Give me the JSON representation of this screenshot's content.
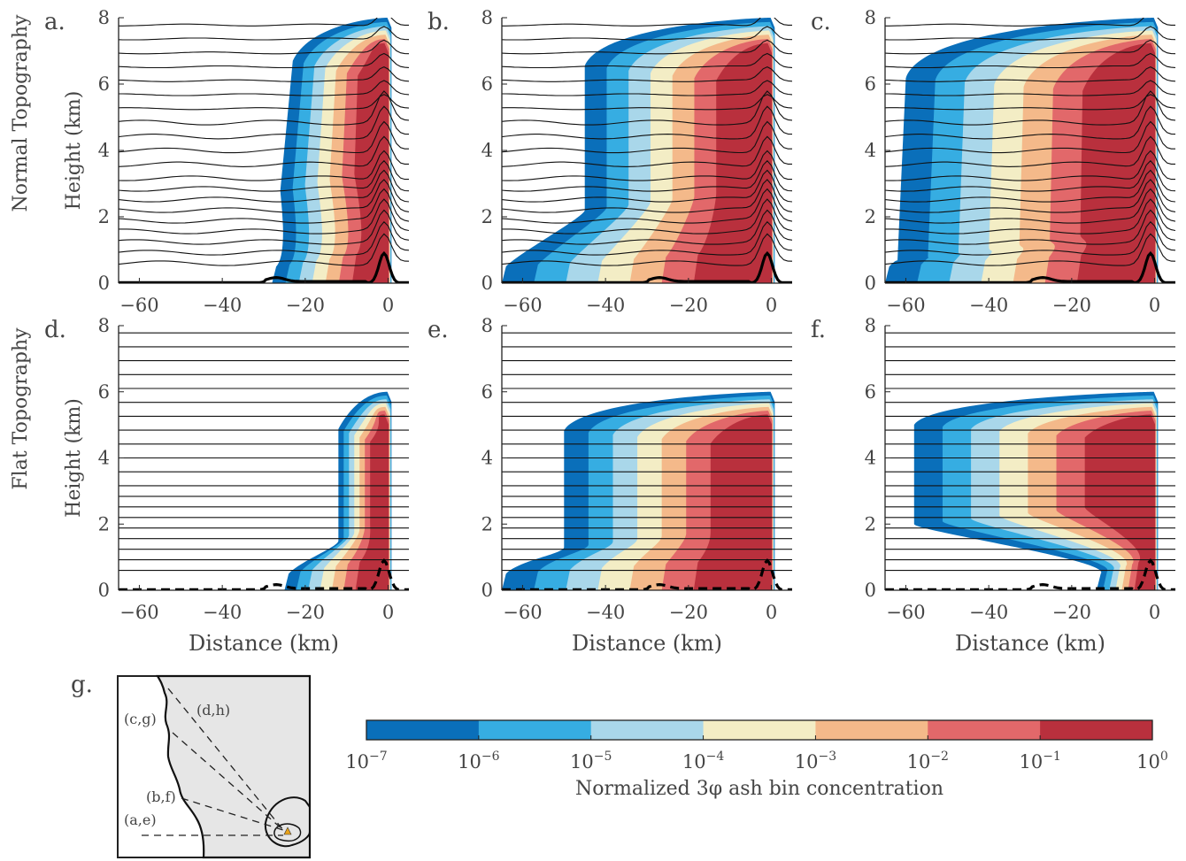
{
  "row_labels": [
    "Normal Topography",
    "Flat Topography"
  ],
  "colorbar": {
    "label": "Normalized 3φ ash bin concentration",
    "tick_labels": [
      {
        "base": "10",
        "exp": "−7"
      },
      {
        "base": "10",
        "exp": "−6"
      },
      {
        "base": "10",
        "exp": "−5"
      },
      {
        "base": "10",
        "exp": "−4"
      },
      {
        "base": "10",
        "exp": "−3"
      },
      {
        "base": "10",
        "exp": "−2"
      },
      {
        "base": "10",
        "exp": "−1"
      },
      {
        "base": "10",
        "exp": "0"
      }
    ],
    "colors": [
      "#0a6fba",
      "#36ade2",
      "#a9d7ea",
      "#f3edc5",
      "#f4b98a",
      "#e2686a",
      "#b9303d"
    ]
  },
  "chart_data": [
    {
      "type": "heatmap",
      "panel": "a.",
      "xlabel": "",
      "ylabel": "Height (km)",
      "xlim": [
        -65,
        5
      ],
      "ylim": [
        0,
        8
      ],
      "x_ticks": [
        "-60",
        "-40",
        "-20",
        "0"
      ],
      "y_ticks": [
        "0",
        "2",
        "4",
        "6",
        "8"
      ],
      "terrain": "solid",
      "plume": {
        "base_x": -28,
        "top_x": -23,
        "upper_x": -26,
        "upper_y0": 2.8,
        "max_top": 8
      }
    },
    {
      "type": "heatmap",
      "panel": "b.",
      "xlabel": "",
      "ylabel": "",
      "xlim": [
        -65,
        5
      ],
      "ylim": [
        0,
        8
      ],
      "x_ticks": [
        "-60",
        "-40",
        "-20",
        "0"
      ],
      "y_ticks": [
        "0",
        "2",
        "4",
        "6",
        "8"
      ],
      "terrain": "solid",
      "plume": {
        "base_x": -65,
        "top_x": -45,
        "upper_x": -45,
        "upper_y0": 2.2,
        "max_top": 8
      }
    },
    {
      "type": "heatmap",
      "panel": "c.",
      "xlabel": "",
      "ylabel": "",
      "xlim": [
        -65,
        5
      ],
      "ylim": [
        0,
        8
      ],
      "x_ticks": [
        "-60",
        "-40",
        "-20",
        "0"
      ],
      "y_ticks": [
        "0",
        "2",
        "4",
        "6",
        "8"
      ],
      "terrain": "solid",
      "plume": {
        "base_x": -65,
        "top_x": -60,
        "upper_x": -62,
        "upper_y0": 0.7,
        "max_top": 8
      }
    },
    {
      "type": "heatmap",
      "panel": "d.",
      "xlabel": "Distance (km)",
      "ylabel": "Height (km)",
      "xlim": [
        -65,
        5
      ],
      "ylim": [
        0,
        8
      ],
      "x_ticks": [
        "-60",
        "-40",
        "-20",
        "0"
      ],
      "y_ticks": [
        "0",
        "2",
        "4",
        "6",
        "8"
      ],
      "terrain": "dashed",
      "plume": {
        "base_x": -25,
        "top_x": -12,
        "upper_x": -12,
        "upper_y0": 1.5,
        "max_top": 6
      }
    },
    {
      "type": "heatmap",
      "panel": "e.",
      "xlabel": "Distance (km)",
      "ylabel": "",
      "xlim": [
        -65,
        5
      ],
      "ylim": [
        0,
        8
      ],
      "x_ticks": [
        "-60",
        "-40",
        "-20",
        "0"
      ],
      "y_ticks": [
        "0",
        "2",
        "4",
        "6",
        "8"
      ],
      "terrain": "dashed",
      "plume": {
        "base_x": -65,
        "top_x": -50,
        "upper_x": -50,
        "upper_y0": 1.3,
        "max_top": 6
      }
    },
    {
      "type": "heatmap",
      "panel": "f.",
      "xlabel": "Distance (km)",
      "ylabel": "",
      "xlim": [
        -65,
        5
      ],
      "ylim": [
        0,
        8
      ],
      "x_ticks": [
        "-60",
        "-40",
        "-20",
        "0"
      ],
      "y_ticks": [
        "0",
        "2",
        "4",
        "6",
        "8"
      ],
      "terrain": "dashed",
      "plume": {
        "base_x": -14,
        "top_x": -58,
        "upper_x": -58,
        "upper_y0": 2.0,
        "max_top": 6
      }
    }
  ],
  "map": {
    "panel": "g.",
    "labels": [
      "(d,h)",
      "(c,g)",
      "(b,f)",
      "(a,e)"
    ]
  }
}
